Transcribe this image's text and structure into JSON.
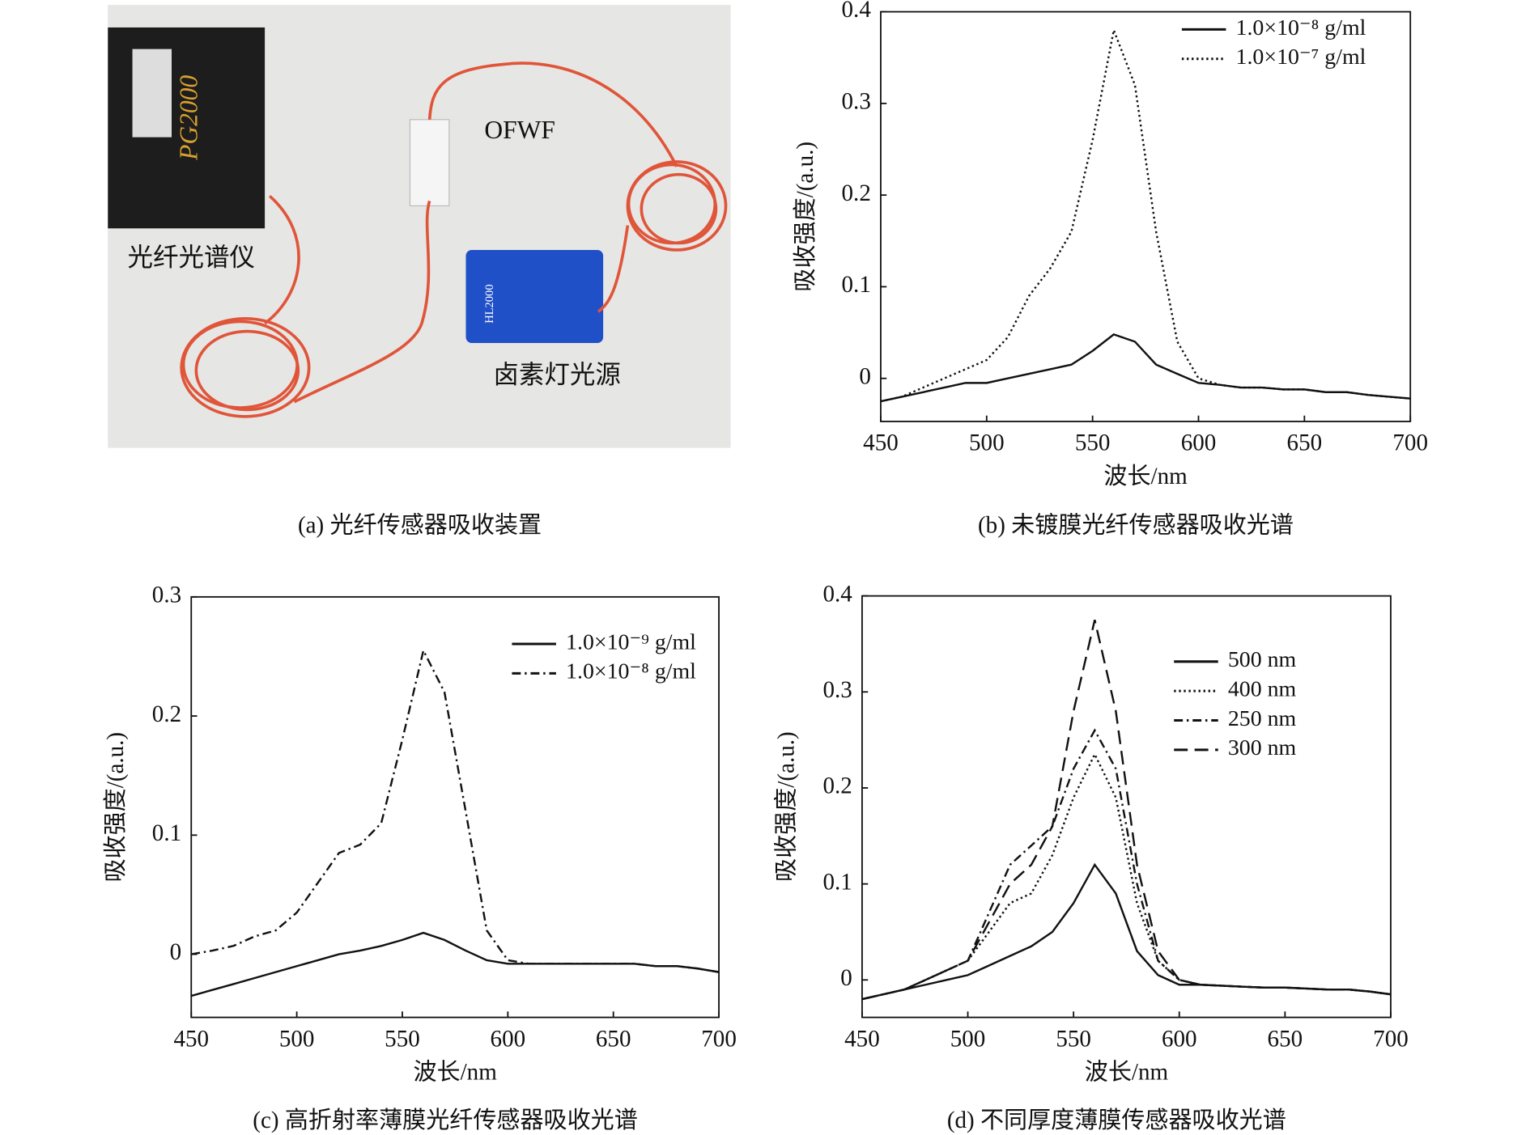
{
  "photo": {
    "labels": [
      "光纤光谱仪",
      "OFWF",
      "卤素灯光源",
      "PG2000",
      "HL2000"
    ],
    "caption": "(a) 光纤传感器吸收装置"
  },
  "chart_data": [
    {
      "type": "line",
      "caption": "(b) 未镀膜光纤传感器吸收光谱",
      "xlabel": "波长/nm",
      "ylabel": "吸收强度/(a.u.)",
      "x": [
        450,
        460,
        470,
        480,
        490,
        500,
        510,
        520,
        530,
        540,
        550,
        560,
        570,
        580,
        590,
        600,
        610,
        620,
        630,
        640,
        650,
        660,
        670,
        680,
        690,
        700
      ],
      "series": [
        {
          "name": "1.0×10⁻⁸ g/ml",
          "color": "#111111",
          "dash": "solid",
          "values": [
            -0.025,
            -0.02,
            -0.015,
            -0.01,
            -0.005,
            -0.005,
            0,
            0.005,
            0.01,
            0.015,
            0.03,
            0.048,
            0.04,
            0.015,
            0.005,
            -0.005,
            -0.007,
            -0.01,
            -0.01,
            -0.012,
            -0.012,
            -0.015,
            -0.015,
            -0.018,
            -0.02,
            -0.022
          ]
        },
        {
          "name": "1.0×10⁻⁷ g/ml",
          "color": "#111111",
          "dash": "dotted",
          "values": [
            -0.025,
            -0.02,
            -0.01,
            0,
            0.01,
            0.02,
            0.045,
            0.09,
            0.12,
            0.16,
            0.26,
            0.38,
            0.32,
            0.16,
            0.04,
            0,
            -0.007,
            -0.01,
            -0.01,
            -0.012,
            -0.012,
            -0.015,
            -0.015,
            -0.018,
            -0.02,
            -0.022
          ]
        }
      ],
      "xlim": [
        450,
        700
      ],
      "ylim": [
        -0.047,
        0.4
      ],
      "xticks": [
        450,
        500,
        550,
        600,
        650,
        700
      ],
      "yticks": [
        0,
        0.1,
        0.2,
        0.3,
        0.4
      ],
      "grid": false,
      "legend": "top-right"
    },
    {
      "type": "line",
      "caption": "(c) 高折射率薄膜光纤传感器吸收光谱",
      "xlabel": "波长/nm",
      "ylabel": "吸收强度/(a.u.)",
      "x": [
        450,
        460,
        470,
        480,
        490,
        500,
        510,
        520,
        530,
        540,
        550,
        560,
        570,
        580,
        590,
        600,
        610,
        620,
        630,
        640,
        650,
        660,
        670,
        680,
        690,
        700
      ],
      "series": [
        {
          "name": "1.0×10⁻⁹ g/ml",
          "color": "#111111",
          "dash": "solid",
          "values": [
            -0.035,
            -0.03,
            -0.025,
            -0.02,
            -0.015,
            -0.01,
            -0.005,
            0,
            0.003,
            0.007,
            0.012,
            0.018,
            0.012,
            0.003,
            -0.005,
            -0.008,
            -0.008,
            -0.008,
            -0.008,
            -0.008,
            -0.008,
            -0.008,
            -0.01,
            -0.01,
            -0.012,
            -0.015
          ]
        },
        {
          "name": "1.0×10⁻⁸ g/ml",
          "color": "#111111",
          "dash": "dashdot",
          "values": [
            0,
            0.003,
            0.007,
            0.015,
            0.02,
            0.035,
            0.06,
            0.085,
            0.092,
            0.11,
            0.18,
            0.255,
            0.22,
            0.12,
            0.02,
            -0.005,
            -0.008,
            -0.008,
            -0.008,
            -0.008,
            -0.008,
            -0.008,
            -0.01,
            -0.01,
            -0.012,
            -0.015
          ]
        }
      ],
      "xlim": [
        450,
        700
      ],
      "ylim": [
        -0.053,
        0.3
      ],
      "xticks": [
        450,
        500,
        550,
        600,
        650,
        700
      ],
      "yticks": [
        0,
        0.1,
        0.2,
        0.3
      ],
      "grid": false,
      "legend": "top-right"
    },
    {
      "type": "line",
      "caption": "(d) 不同厚度薄膜传感器吸收光谱",
      "xlabel": "波长/nm",
      "ylabel": "吸收强度/(a.u.)",
      "x": [
        450,
        460,
        470,
        480,
        490,
        500,
        510,
        520,
        530,
        540,
        550,
        560,
        570,
        580,
        590,
        600,
        610,
        620,
        630,
        640,
        650,
        660,
        670,
        680,
        690,
        700
      ],
      "series": [
        {
          "name": "500 nm",
          "color": "#111111",
          "dash": "solid",
          "values": [
            -0.02,
            -0.015,
            -0.01,
            -0.005,
            0,
            0.005,
            0.015,
            0.025,
            0.035,
            0.05,
            0.08,
            0.12,
            0.09,
            0.03,
            0.005,
            -0.005,
            -0.005,
            -0.006,
            -0.007,
            -0.008,
            -0.008,
            -0.009,
            -0.01,
            -0.01,
            -0.012,
            -0.015
          ]
        },
        {
          "name": "400 nm",
          "color": "#111111",
          "dash": "dotted",
          "values": [
            -0.02,
            -0.015,
            -0.01,
            0,
            0.01,
            0.02,
            0.05,
            0.08,
            0.09,
            0.13,
            0.19,
            0.235,
            0.19,
            0.08,
            0.02,
            0,
            -0.005,
            -0.006,
            -0.007,
            -0.008,
            -0.008,
            -0.009,
            -0.01,
            -0.01,
            -0.012,
            -0.015
          ]
        },
        {
          "name": "250 nm",
          "color": "#111111",
          "dash": "dashdot",
          "values": [
            -0.02,
            -0.015,
            -0.01,
            0,
            0.01,
            0.02,
            0.07,
            0.12,
            0.14,
            0.16,
            0.22,
            0.26,
            0.22,
            0.1,
            0.02,
            0,
            -0.005,
            -0.006,
            -0.007,
            -0.008,
            -0.008,
            -0.009,
            -0.01,
            -0.01,
            -0.012,
            -0.015
          ]
        },
        {
          "name": "300 nm",
          "color": "#111111",
          "dash": "dashed",
          "values": [
            -0.02,
            -0.015,
            -0.01,
            0,
            0.01,
            0.02,
            0.06,
            0.1,
            0.12,
            0.16,
            0.28,
            0.375,
            0.28,
            0.12,
            0.03,
            0,
            -0.005,
            -0.006,
            -0.007,
            -0.008,
            -0.008,
            -0.009,
            -0.01,
            -0.01,
            -0.012,
            -0.015
          ]
        }
      ],
      "xlim": [
        450,
        700
      ],
      "ylim": [
        -0.039,
        0.4
      ],
      "xticks": [
        450,
        500,
        550,
        600,
        650,
        700
      ],
      "yticks": [
        0,
        0.1,
        0.2,
        0.3,
        0.4
      ],
      "grid": false,
      "legend": "top-right"
    }
  ]
}
